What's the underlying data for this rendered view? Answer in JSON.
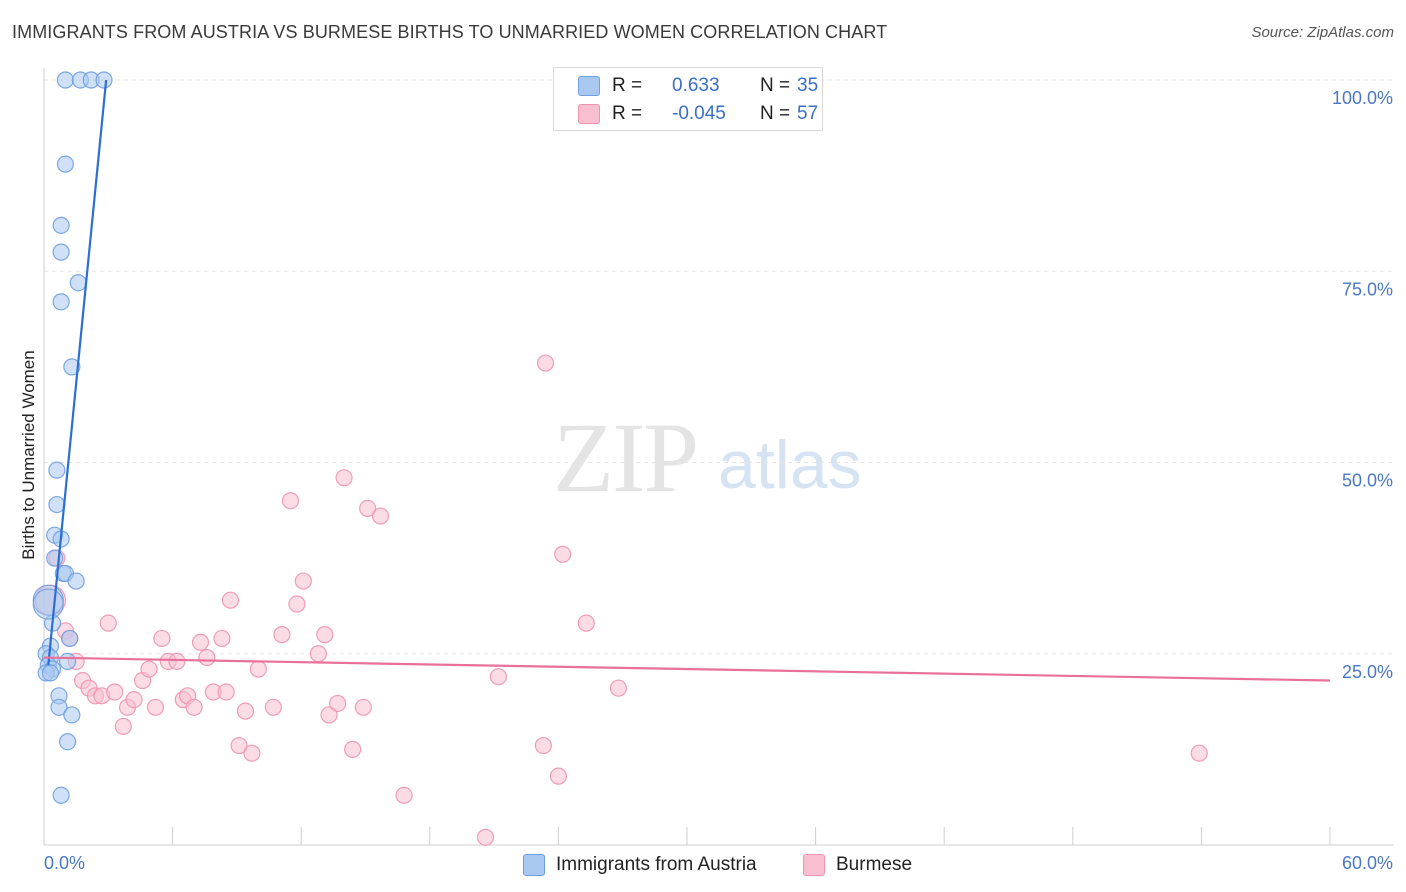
{
  "title": "IMMIGRANTS FROM AUSTRIA VS BURMESE BIRTHS TO UNMARRIED WOMEN CORRELATION CHART",
  "source": "Source: ZipAtlas.com",
  "watermark": {
    "zip": "ZIP",
    "atlas": "atlas"
  },
  "legend": {
    "r_label": "R =",
    "n_label": "N =",
    "austria": {
      "r": "0.633",
      "n": "35",
      "color": "#a9c8f0"
    },
    "burmese": {
      "r": "-0.045",
      "n": "57",
      "color": "#f7bfd0"
    }
  },
  "chart_data": {
    "type": "scatter",
    "title": "IMMIGRANTS FROM AUSTRIA VS BURMESE BIRTHS TO UNMARRIED WOMEN CORRELATION CHART",
    "xlabel": "",
    "ylabel": "Births to Unmarried Women",
    "xlim": [
      0,
      60
    ],
    "ylim": [
      0,
      100
    ],
    "x_tick_labels": [
      "0.0%",
      "60.0%"
    ],
    "y_tick_labels": [
      "100.0%",
      "75.0%",
      "50.0%",
      "25.0%"
    ],
    "y_ticks": [
      100,
      75,
      50,
      25
    ],
    "grid": true,
    "legend_position": "top-center",
    "series": [
      {
        "name": "Immigrants from Austria",
        "color": "#6f9fe0",
        "fill": "#a9c8f0",
        "trend": {
          "x": [
            0.2,
            2.9
          ],
          "y": [
            23.5,
            100
          ],
          "color": "#2c6fd4"
        },
        "points": [
          [
            1.0,
            100
          ],
          [
            1.7,
            100
          ],
          [
            2.2,
            100
          ],
          [
            2.8,
            100
          ],
          [
            1.0,
            89
          ],
          [
            0.8,
            81
          ],
          [
            0.8,
            77.5
          ],
          [
            1.6,
            73.5
          ],
          [
            0.8,
            71
          ],
          [
            1.3,
            62.5
          ],
          [
            0.6,
            49
          ],
          [
            0.6,
            44.5
          ],
          [
            0.5,
            40.5
          ],
          [
            0.8,
            40
          ],
          [
            0.5,
            37.5
          ],
          [
            0.9,
            35.5
          ],
          [
            1.0,
            35.5
          ],
          [
            1.5,
            34.5
          ],
          [
            0.2,
            32
          ],
          [
            0.4,
            29
          ],
          [
            1.2,
            27
          ],
          [
            0.3,
            26
          ],
          [
            0.1,
            25
          ],
          [
            0.3,
            24.5
          ],
          [
            1.1,
            24
          ],
          [
            0.2,
            23.5
          ],
          [
            0.4,
            23
          ],
          [
            0.1,
            22.5
          ],
          [
            0.3,
            22.5
          ],
          [
            0.7,
            19.5
          ],
          [
            0.7,
            18
          ],
          [
            1.3,
            17
          ],
          [
            1.1,
            13.5
          ],
          [
            0.8,
            6.5
          ],
          [
            0.2,
            31.5
          ]
        ]
      },
      {
        "name": "Burmese",
        "color": "#ee93b0",
        "fill": "#f7bfd0",
        "trend": {
          "x": [
            0,
            60
          ],
          "y": [
            24.5,
            21.5
          ],
          "color": "#e8709a"
        },
        "points": [
          [
            0.3,
            32
          ],
          [
            0.6,
            37.5
          ],
          [
            1.0,
            28
          ],
          [
            1.2,
            27
          ],
          [
            1.5,
            24
          ],
          [
            1.8,
            21.5
          ],
          [
            2.1,
            20.5
          ],
          [
            2.4,
            19.5
          ],
          [
            2.7,
            19.5
          ],
          [
            3.0,
            29
          ],
          [
            3.3,
            20
          ],
          [
            3.7,
            15.5
          ],
          [
            3.9,
            18
          ],
          [
            4.2,
            19
          ],
          [
            4.6,
            21.5
          ],
          [
            4.9,
            23
          ],
          [
            5.2,
            18
          ],
          [
            5.5,
            27
          ],
          [
            5.8,
            24
          ],
          [
            6.2,
            24
          ],
          [
            6.5,
            19
          ],
          [
            6.7,
            19.5
          ],
          [
            7.0,
            18
          ],
          [
            7.3,
            26.5
          ],
          [
            7.6,
            24.5
          ],
          [
            7.9,
            20
          ],
          [
            8.3,
            27
          ],
          [
            8.5,
            20
          ],
          [
            8.7,
            32
          ],
          [
            9.1,
            13
          ],
          [
            9.4,
            17.5
          ],
          [
            9.7,
            12
          ],
          [
            10.0,
            23
          ],
          [
            10.7,
            18
          ],
          [
            11.1,
            27.5
          ],
          [
            11.5,
            45
          ],
          [
            11.8,
            31.5
          ],
          [
            12.1,
            34.5
          ],
          [
            12.8,
            25
          ],
          [
            13.1,
            27.5
          ],
          [
            13.3,
            17
          ],
          [
            13.7,
            18.5
          ],
          [
            14.0,
            48
          ],
          [
            14.4,
            12.5
          ],
          [
            14.9,
            18
          ],
          [
            15.1,
            44
          ],
          [
            15.7,
            43
          ],
          [
            16.8,
            6.5
          ],
          [
            20.6,
            1
          ],
          [
            21.2,
            22
          ],
          [
            23.3,
            13
          ],
          [
            23.4,
            63
          ],
          [
            24.0,
            9
          ],
          [
            24.2,
            38
          ],
          [
            25.3,
            29
          ],
          [
            26.8,
            20.5
          ],
          [
            53.9,
            12
          ]
        ]
      }
    ]
  }
}
